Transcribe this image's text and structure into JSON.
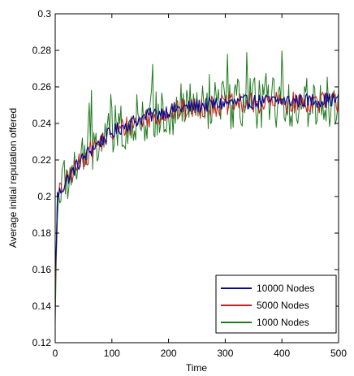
{
  "chart_data": {
    "type": "line",
    "title": "",
    "xlabel": "Time",
    "ylabel": "Average initial reputation offered",
    "xlim": [
      0,
      500
    ],
    "ylim": [
      0.12,
      0.3
    ],
    "xticks": [
      0,
      100,
      200,
      300,
      400,
      500
    ],
    "yticks": [
      0.12,
      0.14,
      0.16,
      0.18,
      0.2,
      0.22,
      0.24,
      0.26,
      0.28,
      0.3
    ],
    "xtick_labels": [
      "0",
      "100",
      "200",
      "300",
      "400",
      "500"
    ],
    "ytick_labels": [
      "0.12",
      "0.14",
      "0.16",
      "0.18",
      "0.2",
      "0.22",
      "0.24",
      "0.26",
      "0.28",
      "0.3"
    ],
    "grid": false,
    "legend_position": "bottom-right",
    "x_step": 2,
    "series": [
      {
        "name": "10000 Nodes",
        "color": "#0a0a8c",
        "start": 0.16,
        "plateau": 0.253,
        "rise_rate": 90,
        "noise": 0.004,
        "first_dip": 0.15
      },
      {
        "name": "5000 Nodes",
        "color": "#c81e1e",
        "start": 0.15,
        "plateau": 0.252,
        "rise_rate": 90,
        "noise": 0.006,
        "first_dip": 0.14
      },
      {
        "name": "1000 Nodes",
        "color": "#1f7a1f",
        "start": 0.13,
        "plateau": 0.252,
        "rise_rate": 85,
        "noise": 0.014,
        "first_dip": 0.125
      }
    ]
  }
}
